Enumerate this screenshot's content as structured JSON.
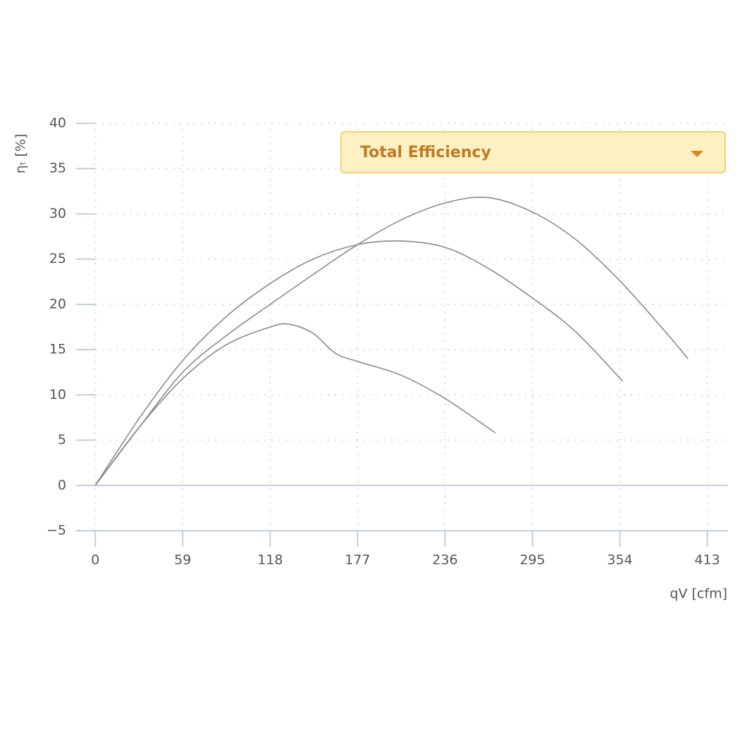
{
  "chart_data": {
    "type": "line",
    "y_label": "ηₜ [%]",
    "x_label": "qV [cfm]",
    "xlim": [
      -12,
      427
    ],
    "ylim": [
      -5,
      40
    ],
    "xticks": [
      0,
      59,
      118,
      177,
      236,
      295,
      354,
      413
    ],
    "yticks": [
      {
        "value": -5,
        "label": "−5"
      },
      0,
      5,
      10,
      15,
      20,
      25,
      30,
      35,
      40
    ],
    "grid": true,
    "series": [
      {
        "color": "#8a8a8a",
        "x": [
          0,
          30,
          59,
          88,
          118,
          147,
          177,
          206,
          236,
          265,
          295,
          324,
          354,
          383,
          400
        ],
        "values": [
          0,
          6.5,
          12.5,
          16.5,
          20,
          23.3,
          26.6,
          29.3,
          31.2,
          31.8,
          30.2,
          27.2,
          22.6,
          17.3,
          14
        ]
      },
      {
        "color": "#8a8a8a",
        "x": [
          0,
          30,
          59,
          88,
          118,
          147,
          177,
          206,
          236,
          265,
          295,
          324,
          356
        ],
        "values": [
          0,
          7.5,
          13.8,
          18.6,
          22.3,
          25,
          26.6,
          27,
          26.3,
          24,
          20.7,
          17,
          11.5
        ]
      },
      {
        "color": "#8a8a8a",
        "x": [
          0,
          30,
          59,
          88,
          118,
          131,
          147,
          162,
          177,
          206,
          236,
          270
        ],
        "values": [
          0,
          6.5,
          11.8,
          15.5,
          17.5,
          17.8,
          16.8,
          14.6,
          13.7,
          12.2,
          9.6,
          5.8
        ]
      }
    ]
  },
  "dropdown": {
    "label": "Total Efficiency"
  }
}
